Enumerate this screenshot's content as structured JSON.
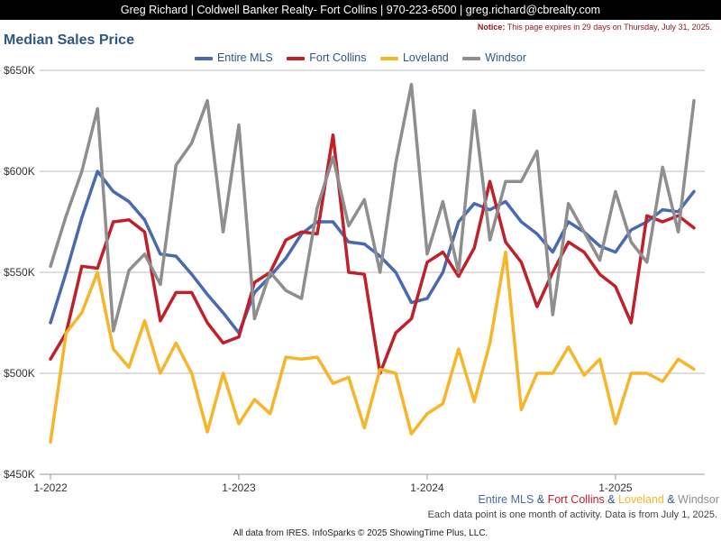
{
  "header": {
    "contact": "Greg Richard | Coldwell Banker Realty- Fort Collins | 970-223-6500 | greg.richard@cbrealty.com",
    "notice_label": "Notice:",
    "notice_text": " This page expires in 29 days on Thursday, July 31, 2025."
  },
  "chart_data": {
    "type": "line",
    "title": "Median Sales Price",
    "y_ticks": [
      "$450K",
      "$500K",
      "$550K",
      "$600K",
      "$650K"
    ],
    "y_tick_values": [
      450,
      500,
      550,
      600,
      650
    ],
    "ylim": [
      450,
      650
    ],
    "y_unit": "thousands of dollars",
    "x_ticks": [
      "1-2022",
      "1-2023",
      "1-2024",
      "1-2025"
    ],
    "x_tick_months": [
      "2022-01",
      "2023-01",
      "2024-01",
      "2025-01"
    ],
    "x": [
      "2022-01",
      "2022-02",
      "2022-03",
      "2022-04",
      "2022-05",
      "2022-06",
      "2022-07",
      "2022-08",
      "2022-09",
      "2022-10",
      "2022-11",
      "2022-12",
      "2023-01",
      "2023-02",
      "2023-03",
      "2023-04",
      "2023-05",
      "2023-06",
      "2023-07",
      "2023-08",
      "2023-09",
      "2023-10",
      "2023-11",
      "2023-12",
      "2024-01",
      "2024-02",
      "2024-03",
      "2024-04",
      "2024-05",
      "2024-06",
      "2024-07",
      "2024-08",
      "2024-09",
      "2024-10",
      "2024-11",
      "2024-12",
      "2025-01",
      "2025-02",
      "2025-03",
      "2025-04",
      "2025-05",
      "2025-06"
    ],
    "grid": true,
    "legend_position": "top-center",
    "series": [
      {
        "name": "Entire MLS",
        "color": "#4a6ab0",
        "values": [
          525,
          550,
          577,
          600,
          590,
          585,
          576,
          559,
          558,
          549,
          539,
          530,
          520,
          540,
          548,
          557,
          569,
          575,
          575,
          565,
          564,
          558,
          550,
          535,
          537,
          550,
          575,
          584,
          581,
          585,
          575,
          569,
          560,
          575,
          570,
          563,
          560,
          571,
          575,
          581,
          580,
          590
        ]
      },
      {
        "name": "Fort Collins",
        "color": "#c0202a",
        "values": [
          507,
          520,
          553,
          552,
          575,
          576,
          570,
          526,
          540,
          540,
          525,
          515,
          518,
          545,
          550,
          566,
          570,
          569,
          618,
          550,
          549,
          500,
          520,
          527,
          555,
          560,
          548,
          562,
          595,
          565,
          555,
          533,
          550,
          565,
          560,
          549,
          543,
          525,
          578,
          575,
          578,
          572
        ]
      },
      {
        "name": "Loveland",
        "color": "#f7b52a",
        "values": [
          466,
          520,
          530,
          550,
          512,
          503,
          526,
          500,
          515,
          500,
          471,
          500,
          475,
          487,
          480,
          508,
          507,
          508,
          495,
          498,
          473,
          502,
          500,
          470,
          480,
          485,
          512,
          486,
          515,
          560,
          482,
          500,
          500,
          513,
          499,
          507,
          475,
          500,
          500,
          496,
          507,
          502
        ]
      },
      {
        "name": "Windsor",
        "color": "#8e8e8e",
        "values": [
          553,
          578,
          600,
          631,
          521,
          551,
          559,
          544,
          603,
          614,
          635,
          570,
          623,
          527,
          550,
          541,
          537,
          582,
          607,
          573,
          586,
          550,
          604,
          643,
          559,
          585,
          550,
          630,
          566,
          595,
          595,
          610,
          529,
          584,
          570,
          556,
          590,
          565,
          555,
          602,
          570,
          635
        ]
      }
    ],
    "summary_caption": {
      "parts": [
        "Entire MLS",
        " & ",
        "Fort Collins",
        " & ",
        "Loveland",
        " & ",
        "Windsor"
      ]
    }
  },
  "footer": {
    "note": "Each data point is one month of activity. Data is from July 1, 2025.",
    "credit": "All data from IRES. InfoSparks © 2025 ShowingTime Plus, LLC."
  }
}
